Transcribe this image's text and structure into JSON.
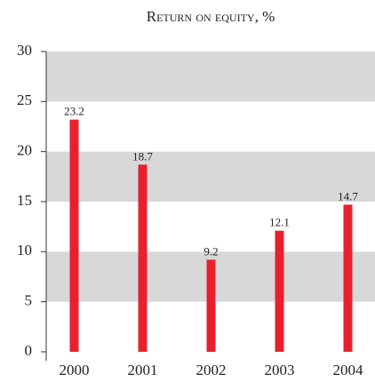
{
  "chart_data": {
    "type": "bar",
    "title": "Return on equity, %",
    "categories": [
      "2000",
      "2001",
      "2002",
      "2003",
      "2004"
    ],
    "values": [
      23.2,
      18.7,
      9.2,
      12.1,
      14.7
    ],
    "color": "#e8202e",
    "band_color": "#d8d8d9",
    "ylim": [
      0,
      30
    ],
    "yticks": [
      0,
      5,
      10,
      15,
      20,
      25,
      30
    ],
    "grid": true
  }
}
